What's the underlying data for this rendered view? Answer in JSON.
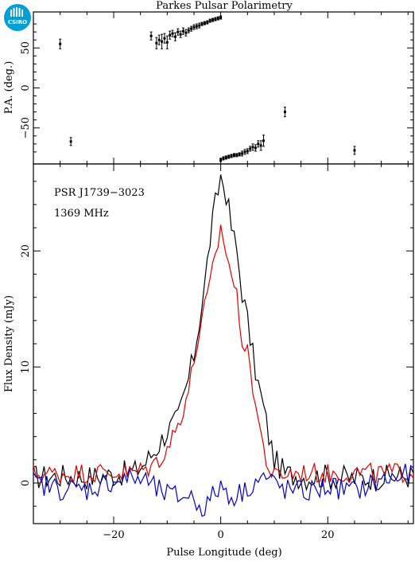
{
  "logo": {
    "text": "CSIRO"
  },
  "chart_data": [
    {
      "type": "scatter",
      "panel": "position-angle",
      "title": "Parkes Pulsar Polarimetry",
      "xlabel": "",
      "ylabel": "P.A. (deg.)",
      "xlim": [
        -35,
        36
      ],
      "ylim": [
        -95,
        95
      ],
      "yticks": [
        -50,
        0,
        50
      ],
      "points": [
        [
          -30,
          55,
          6
        ],
        [
          -28,
          -67,
          5
        ],
        [
          -13,
          65,
          5
        ],
        [
          -12,
          56,
          7
        ],
        [
          -11.5,
          60,
          6
        ],
        [
          -11,
          58,
          9
        ],
        [
          -10.5,
          62,
          6
        ],
        [
          -10,
          57,
          8
        ],
        [
          -9.5,
          66,
          5
        ],
        [
          -9,
          68,
          4
        ],
        [
          -8.5,
          64,
          5
        ],
        [
          -8,
          70,
          4
        ],
        [
          -7.5,
          67,
          4
        ],
        [
          -7,
          71,
          4
        ],
        [
          -6.5,
          69,
          4
        ],
        [
          -6,
          72,
          3
        ],
        [
          -5.5,
          74,
          3
        ],
        [
          -5,
          76,
          3
        ],
        [
          -4.5,
          77,
          3
        ],
        [
          -4,
          78,
          3
        ],
        [
          -3.5,
          80,
          2
        ],
        [
          -3,
          81,
          2
        ],
        [
          -2.5,
          82,
          2
        ],
        [
          -2,
          84,
          2
        ],
        [
          -1.5,
          85,
          2
        ],
        [
          -1,
          86,
          2
        ],
        [
          -0.5,
          87,
          2
        ],
        [
          0,
          88,
          2
        ],
        [
          0,
          -90,
          2
        ],
        [
          0.5,
          -88,
          2
        ],
        [
          1,
          -87,
          2
        ],
        [
          1.5,
          -86,
          2
        ],
        [
          2,
          -85,
          2
        ],
        [
          2.5,
          -84,
          2
        ],
        [
          3,
          -84,
          2
        ],
        [
          3.5,
          -83,
          2
        ],
        [
          4,
          -82,
          3
        ],
        [
          4.5,
          -80,
          3
        ],
        [
          5,
          -79,
          3
        ],
        [
          5.5,
          -76,
          3
        ],
        [
          6,
          -74,
          4
        ],
        [
          6.5,
          -75,
          4
        ],
        [
          7,
          -70,
          4
        ],
        [
          7.5,
          -72,
          6
        ],
        [
          8,
          -66,
          7
        ],
        [
          12,
          -30,
          6
        ],
        [
          25,
          -78,
          5
        ]
      ]
    },
    {
      "type": "line",
      "panel": "flux-profile",
      "title": "",
      "xlabel": "Pulse Longitude (deg)",
      "ylabel": "Flux Density (mJy)",
      "xlim": [
        -35,
        36
      ],
      "ylim": [
        -3.5,
        27.5
      ],
      "xticks": [
        -20,
        0,
        20
      ],
      "yticks": [
        0,
        10,
        20
      ],
      "annotations": [
        "PSR J1739−3023",
        "1369 MHz"
      ],
      "series": [
        {
          "color": "#000000",
          "x": [
            -35,
            -30,
            -25,
            -20,
            -16,
            -14,
            -12,
            -10,
            -8,
            -6,
            -5,
            -4,
            -3,
            -2,
            -1,
            0,
            1,
            2,
            3,
            4,
            5,
            6,
            7,
            8,
            9,
            10,
            12,
            16,
            20,
            25,
            30,
            36
          ],
          "y": [
            0.5,
            0.6,
            0.5,
            0.7,
            1.0,
            1.8,
            3.0,
            4.5,
            5.5,
            9,
            11,
            14,
            17,
            21,
            24,
            26.5,
            25,
            22,
            20,
            16.5,
            14,
            11,
            8.5,
            6.5,
            4,
            2,
            0.8,
            0.5,
            0.6,
            0.4,
            0.5,
            0.6
          ]
        },
        {
          "color": "#e00000",
          "x": [
            -35,
            -30,
            -25,
            -20,
            -16,
            -14,
            -12,
            -10,
            -8,
            -6,
            -5,
            -4,
            -3,
            -2,
            -1,
            0,
            1,
            2,
            3,
            4,
            5,
            6,
            7,
            8,
            9,
            10,
            12,
            16,
            20,
            25,
            30,
            36
          ],
          "y": [
            0.8,
            0.8,
            0.9,
            0.9,
            0.9,
            1.2,
            1.8,
            3.0,
            5.0,
            8.0,
            10.5,
            13,
            15,
            17,
            19.5,
            22,
            20,
            18,
            16,
            12.5,
            11,
            8.5,
            5.5,
            3,
            1.2,
            0.5,
            0.8,
            0.9,
            0.8,
            0.9,
            0.8,
            1.0
          ]
        },
        {
          "color": "#0000cc",
          "x": [
            -35,
            -30,
            -25,
            -20,
            -16,
            -14,
            -12,
            -10,
            -8,
            -6,
            -5,
            -4,
            -3,
            -2,
            -1,
            0,
            1,
            2,
            3,
            4,
            5,
            6,
            7,
            8,
            9,
            10,
            12,
            16,
            20,
            25,
            30,
            36
          ],
          "y": [
            0.0,
            -0.5,
            -0.6,
            0.2,
            0.4,
            0.2,
            -0.6,
            -1.0,
            -1.2,
            -1.0,
            -1.5,
            -1.8,
            -2.2,
            -1.5,
            -0.8,
            -0.3,
            -0.6,
            -1.2,
            -1.0,
            -0.8,
            -0.4,
            0.0,
            0.3,
            0.5,
            0.2,
            0.0,
            -0.6,
            -0.8,
            -0.3,
            -0.7,
            0.2,
            0.8
          ]
        }
      ]
    }
  ]
}
